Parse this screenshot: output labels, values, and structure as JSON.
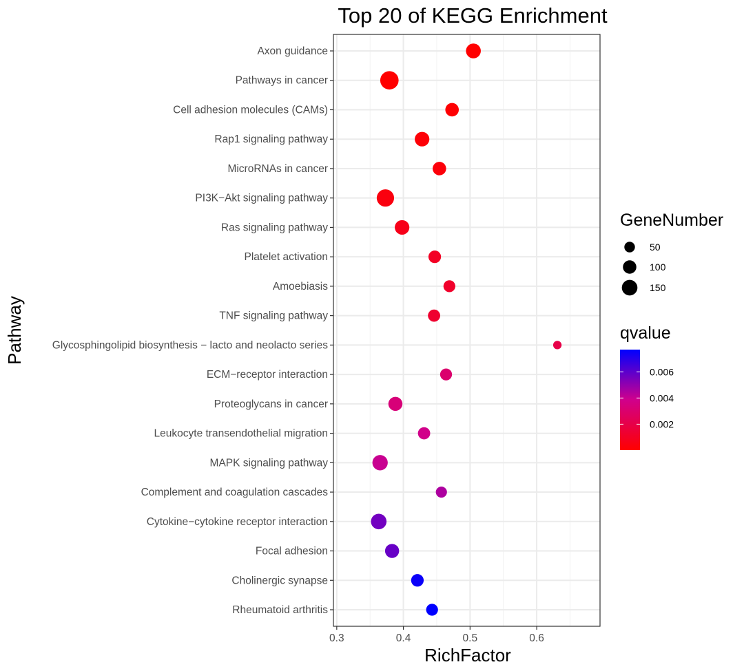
{
  "chart_data": {
    "type": "scatter",
    "title": "Top 20 of KEGG Enrichment",
    "xlabel": "RichFactor",
    "ylabel": "Pathway",
    "xlim": [
      0.295,
      0.695
    ],
    "xticks": [
      0.3,
      0.4,
      0.5,
      0.6
    ],
    "xtick_labels": [
      "0.3",
      "0.4",
      "0.5",
      "0.6"
    ],
    "grid": true,
    "points": [
      {
        "pathway": "Axon guidance",
        "rich_factor": 0.505,
        "gene_number": 105,
        "qvalue": 2e-05
      },
      {
        "pathway": "Pathways in cancer",
        "rich_factor": 0.379,
        "gene_number": 185,
        "qvalue": 2e-05
      },
      {
        "pathway": "Cell adhesion molecules (CAMs)",
        "rich_factor": 0.473,
        "gene_number": 80,
        "qvalue": 0.0001
      },
      {
        "pathway": "Rap1 signaling pathway",
        "rich_factor": 0.428,
        "gene_number": 100,
        "qvalue": 0.0002
      },
      {
        "pathway": "MicroRNAs in cancer",
        "rich_factor": 0.454,
        "gene_number": 80,
        "qvalue": 0.0003
      },
      {
        "pathway": "PI3K−Akt signaling pathway",
        "rich_factor": 0.373,
        "gene_number": 160,
        "qvalue": 0.0004
      },
      {
        "pathway": "Ras signaling pathway",
        "rich_factor": 0.398,
        "gene_number": 100,
        "qvalue": 0.0007
      },
      {
        "pathway": "Platelet activation",
        "rich_factor": 0.447,
        "gene_number": 65,
        "qvalue": 0.001
      },
      {
        "pathway": "Amoebiasis",
        "rich_factor": 0.469,
        "gene_number": 55,
        "qvalue": 0.0012
      },
      {
        "pathway": "TNF signaling pathway",
        "rich_factor": 0.446,
        "gene_number": 60,
        "qvalue": 0.0013
      },
      {
        "pathway": "Glycosphingolipid biosynthesis − lacto and neolacto series",
        "rich_factor": 0.631,
        "gene_number": 17,
        "qvalue": 0.002
      },
      {
        "pathway": "ECM−receptor interaction",
        "rich_factor": 0.464,
        "gene_number": 55,
        "qvalue": 0.003
      },
      {
        "pathway": "Proteoglycans in cancer",
        "rich_factor": 0.388,
        "gene_number": 90,
        "qvalue": 0.0033
      },
      {
        "pathway": "Leukocyte transendothelial migration",
        "rich_factor": 0.431,
        "gene_number": 60,
        "qvalue": 0.0038
      },
      {
        "pathway": "MAPK signaling pathway",
        "rich_factor": 0.365,
        "gene_number": 115,
        "qvalue": 0.004
      },
      {
        "pathway": "Complement and coagulation cascades",
        "rich_factor": 0.457,
        "gene_number": 45,
        "qvalue": 0.0045
      },
      {
        "pathway": "Cytokine−cytokine receptor interaction",
        "rich_factor": 0.363,
        "gene_number": 120,
        "qvalue": 0.0056
      },
      {
        "pathway": "Focal adhesion",
        "rich_factor": 0.383,
        "gene_number": 90,
        "qvalue": 0.0058
      },
      {
        "pathway": "Cholinergic synapse",
        "rich_factor": 0.421,
        "gene_number": 65,
        "qvalue": 0.0075
      },
      {
        "pathway": "Rheumatoid arthritis",
        "rich_factor": 0.443,
        "gene_number": 55,
        "qvalue": 0.0077
      }
    ],
    "size_legend": {
      "title": "GeneNumber",
      "values": [
        50,
        100,
        150
      ],
      "labels": [
        "50",
        "100",
        "150"
      ]
    },
    "color_legend": {
      "title": "qvalue",
      "range": [
        2e-05,
        0.0077
      ],
      "ticks": [
        0.002,
        0.004,
        0.006
      ],
      "tick_labels": [
        "0.002",
        "0.004",
        "0.006"
      ],
      "low_color": "#ff0000",
      "high_color": "#0000ff"
    }
  }
}
